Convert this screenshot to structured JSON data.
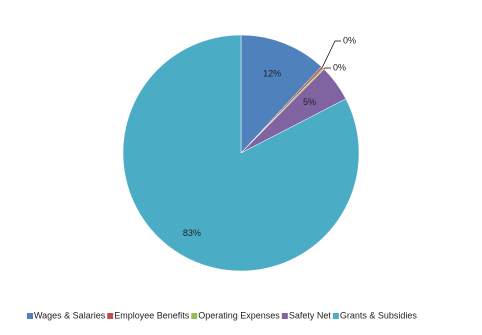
{
  "chart_data": {
    "type": "pie",
    "categories": [
      "Wages & Salaries",
      "Employee Benefits",
      "Operating Expenses",
      "Safety Net",
      "Grants & Subsidies"
    ],
    "values": [
      12,
      0.3,
      0.2,
      5,
      83
    ],
    "value_labels": [
      "12%",
      "0%",
      "0%",
      "5%",
      "83%"
    ],
    "colors": [
      "#4f81bd",
      "#c0504d",
      "#9bbb59",
      "#8064a2",
      "#4bacc6"
    ],
    "legend": "bottom"
  }
}
